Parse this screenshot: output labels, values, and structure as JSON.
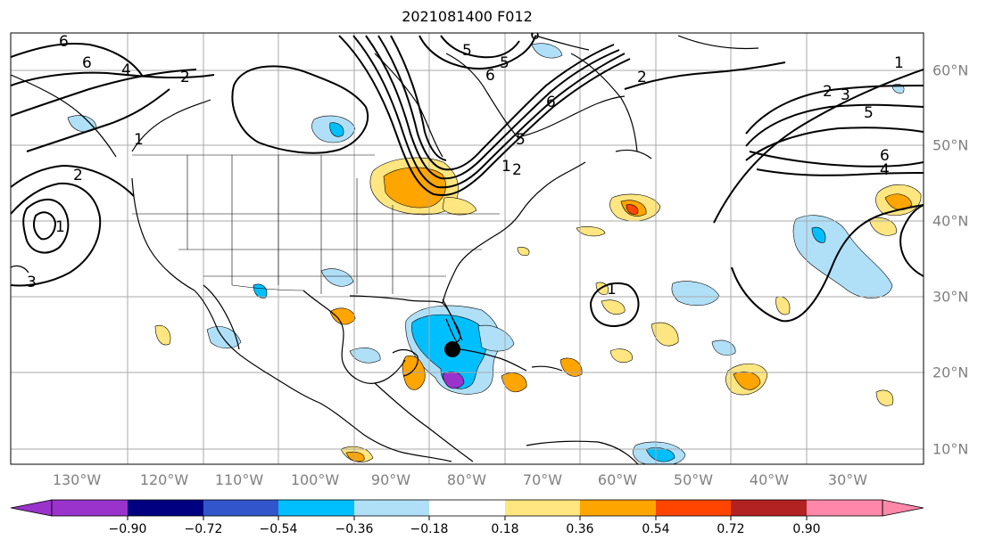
{
  "title": "2021081400 F012",
  "map": {
    "lon_labels": [
      "130°W",
      "120°W",
      "110°W",
      "100°W",
      "90°W",
      "80°W",
      "70°W",
      "60°W",
      "50°W",
      "40°W",
      "30°W"
    ],
    "lat_labels": [
      "60°N",
      "50°N",
      "40°N",
      "30°N",
      "20°N",
      "10°N"
    ],
    "contour_labels": [
      "6",
      "6",
      "4",
      "2",
      "5",
      "6",
      "5",
      "6",
      "2",
      "1",
      "6",
      "5",
      "3",
      "2",
      "2",
      "1",
      "1",
      "2",
      "5",
      "3",
      "6",
      "4",
      "1",
      "1"
    ],
    "marker": "storm-center-dot",
    "colors": {
      "grid": "#a9a9a9",
      "contour": "#000000",
      "coast": "#000000"
    }
  },
  "colorbar": {
    "ticks": [
      "−0.90",
      "−0.72",
      "−0.54",
      "−0.36",
      "−0.18",
      "0.18",
      "0.36",
      "0.54",
      "0.72",
      "0.90"
    ],
    "colors": [
      "#9933cc",
      "#000080",
      "#3355cc",
      "#00bfff",
      "#b0e0f8",
      "#ffffff",
      "#ffe680",
      "#ffa500",
      "#ff4500",
      "#b22222",
      "#ff88aa"
    ]
  }
}
